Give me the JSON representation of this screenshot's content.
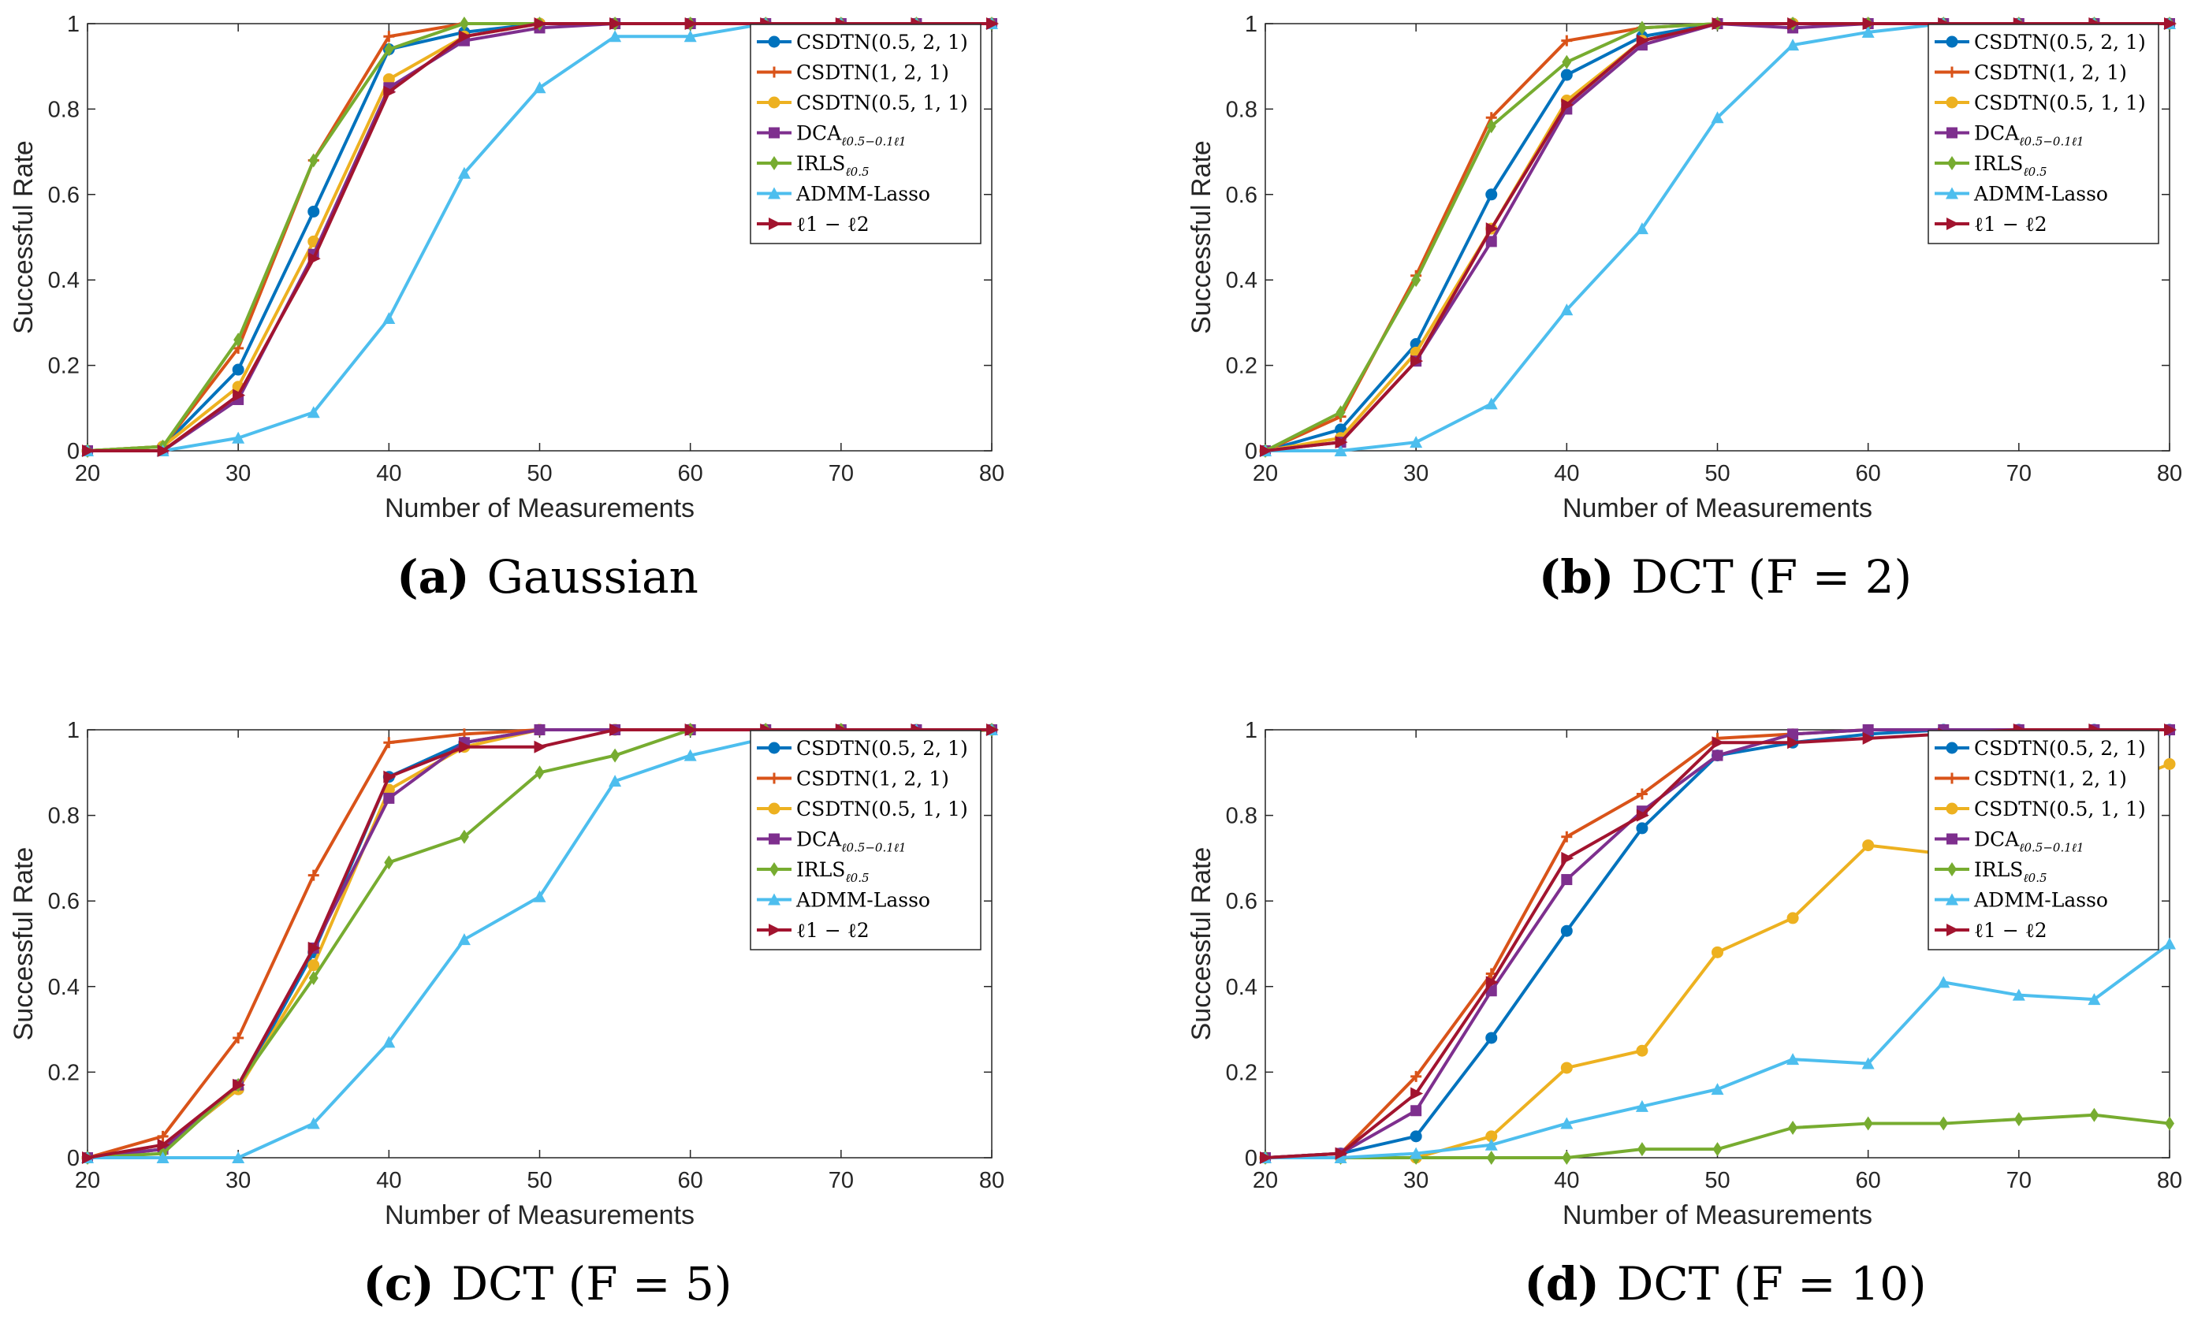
{
  "chart_data": [
    {
      "type": "line",
      "panel": "(a)",
      "caption": "Gaussian",
      "xlabel": "Number of Measurements",
      "ylabel": "Successful Rate",
      "xlim": [
        20,
        80
      ],
      "ylim": [
        0,
        1
      ],
      "xticks": [
        20,
        30,
        40,
        50,
        60,
        70,
        80
      ],
      "yticks": [
        0,
        0.2,
        0.4,
        0.6,
        0.8,
        1
      ],
      "ytick_labels": [
        "0",
        "0.2",
        "0.4",
        "0.6",
        "0.8",
        "1"
      ],
      "legend_position": "top-right",
      "x": [
        20,
        25,
        30,
        35,
        40,
        45,
        50,
        55,
        60,
        65,
        70,
        75,
        80
      ],
      "series": [
        {
          "name": "CSDTN(0.5, 2, 1)",
          "sub": "",
          "values": [
            0,
            0.01,
            0.19,
            0.56,
            0.94,
            0.98,
            1,
            1,
            1,
            1,
            1,
            1,
            1
          ]
        },
        {
          "name": "CSDTN(1, 2, 1)",
          "sub": "",
          "values": [
            0,
            0.01,
            0.24,
            0.68,
            0.97,
            1,
            1,
            1,
            1,
            1,
            1,
            1,
            1
          ]
        },
        {
          "name": "CSDTN(0.5, 1, 1)",
          "sub": "",
          "values": [
            0,
            0.01,
            0.15,
            0.49,
            0.87,
            0.97,
            1,
            1,
            1,
            1,
            1,
            1,
            1
          ]
        },
        {
          "name": "DCA",
          "sub": "ℓ0.5−0.1ℓ1",
          "values": [
            0,
            0,
            0.12,
            0.46,
            0.85,
            0.96,
            0.99,
            1,
            1,
            1,
            1,
            1,
            1
          ]
        },
        {
          "name": "IRLS",
          "sub": "ℓ0.5",
          "values": [
            0,
            0.01,
            0.26,
            0.68,
            0.94,
            1,
            1,
            1,
            1,
            1,
            1,
            1,
            1
          ]
        },
        {
          "name": "ADMM-Lasso",
          "sub": "",
          "values": [
            0,
            0,
            0.03,
            0.09,
            0.31,
            0.65,
            0.85,
            0.97,
            0.97,
            1,
            1,
            1,
            1
          ]
        },
        {
          "name": "ℓ1 − ℓ2",
          "sub": "",
          "values": [
            0,
            0,
            0.13,
            0.45,
            0.84,
            0.97,
            1,
            1,
            1,
            1,
            1,
            1,
            1
          ]
        }
      ]
    },
    {
      "type": "line",
      "panel": "(b)",
      "caption": "DCT (F = 2)",
      "xlabel": "Number of Measurements",
      "ylabel": "Successful Rate",
      "xlim": [
        20,
        80
      ],
      "ylim": [
        0,
        1
      ],
      "xticks": [
        20,
        30,
        40,
        50,
        60,
        70,
        80
      ],
      "yticks": [
        0,
        0.2,
        0.4,
        0.6,
        0.8,
        1
      ],
      "ytick_labels": [
        "0",
        "0.2",
        "0.4",
        "0.6",
        "0.8",
        "1"
      ],
      "legend_position": "top-right",
      "x": [
        20,
        25,
        30,
        35,
        40,
        45,
        50,
        55,
        60,
        65,
        70,
        75,
        80
      ],
      "series": [
        {
          "name": "CSDTN(0.5, 2, 1)",
          "sub": "",
          "values": [
            0,
            0.05,
            0.25,
            0.6,
            0.88,
            0.97,
            1,
            1,
            1,
            1,
            1,
            1,
            1
          ]
        },
        {
          "name": "CSDTN(1, 2, 1)",
          "sub": "",
          "values": [
            0,
            0.08,
            0.41,
            0.78,
            0.96,
            0.99,
            1,
            1,
            1,
            1,
            1,
            1,
            1
          ]
        },
        {
          "name": "CSDTN(0.5, 1, 1)",
          "sub": "",
          "values": [
            0,
            0.03,
            0.23,
            0.52,
            0.82,
            0.96,
            1,
            1,
            1,
            1,
            1,
            1,
            1
          ]
        },
        {
          "name": "DCA",
          "sub": "ℓ0.5−0.1ℓ1",
          "values": [
            0,
            0.02,
            0.21,
            0.49,
            0.8,
            0.95,
            1,
            0.99,
            1,
            1,
            1,
            1,
            1
          ]
        },
        {
          "name": "IRLS",
          "sub": "ℓ0.5",
          "values": [
            0,
            0.09,
            0.4,
            0.76,
            0.91,
            0.99,
            1,
            1,
            1,
            1,
            1,
            1,
            1
          ]
        },
        {
          "name": "ADMM-Lasso",
          "sub": "",
          "values": [
            0,
            0,
            0.02,
            0.11,
            0.33,
            0.52,
            0.78,
            0.95,
            0.98,
            1,
            1,
            1,
            1
          ]
        },
        {
          "name": "ℓ1 − ℓ2",
          "sub": "",
          "values": [
            0,
            0.02,
            0.21,
            0.52,
            0.81,
            0.96,
            1,
            1,
            1,
            1,
            1,
            1,
            1
          ]
        }
      ]
    },
    {
      "type": "line",
      "panel": "(c)",
      "caption": "DCT (F = 5)",
      "xlabel": "Number of Measurements",
      "ylabel": "Successful Rate",
      "xlim": [
        20,
        80
      ],
      "ylim": [
        0,
        1
      ],
      "xticks": [
        20,
        30,
        40,
        50,
        60,
        70,
        80
      ],
      "yticks": [
        0,
        0.2,
        0.4,
        0.6,
        0.8,
        1
      ],
      "ytick_labels": [
        "0",
        "0.2",
        "0.4",
        "0.6",
        "0.8",
        "1"
      ],
      "legend_position": "top-right",
      "x": [
        20,
        25,
        30,
        35,
        40,
        45,
        50,
        55,
        60,
        65,
        70,
        75,
        80
      ],
      "series": [
        {
          "name": "CSDTN(0.5, 2, 1)",
          "sub": "",
          "values": [
            0,
            0.02,
            0.16,
            0.48,
            0.89,
            0.97,
            1,
            1,
            1,
            1,
            1,
            1,
            1
          ]
        },
        {
          "name": "CSDTN(1, 2, 1)",
          "sub": "",
          "values": [
            0,
            0.05,
            0.28,
            0.66,
            0.97,
            0.99,
            1,
            1,
            1,
            1,
            1,
            1,
            1
          ]
        },
        {
          "name": "CSDTN(0.5, 1, 1)",
          "sub": "",
          "values": [
            0,
            0.02,
            0.16,
            0.45,
            0.86,
            0.96,
            1,
            1,
            1,
            1,
            1,
            1,
            1
          ]
        },
        {
          "name": "DCA",
          "sub": "ℓ0.5−0.1ℓ1",
          "values": [
            0,
            0.02,
            0.17,
            0.49,
            0.84,
            0.97,
            1,
            1,
            1,
            1,
            1,
            1,
            1
          ]
        },
        {
          "name": "IRLS",
          "sub": "ℓ0.5",
          "values": [
            0,
            0.01,
            0.17,
            0.42,
            0.69,
            0.75,
            0.9,
            0.94,
            1,
            1,
            1,
            0.99,
            1
          ]
        },
        {
          "name": "ADMM-Lasso",
          "sub": "",
          "values": [
            0,
            0,
            0,
            0.08,
            0.27,
            0.51,
            0.61,
            0.88,
            0.94,
            0.98,
            0.99,
            1,
            1
          ]
        },
        {
          "name": "ℓ1 − ℓ2",
          "sub": "",
          "values": [
            0,
            0.03,
            0.17,
            0.49,
            0.89,
            0.96,
            0.96,
            1,
            1,
            1,
            1,
            1,
            1
          ]
        }
      ]
    },
    {
      "type": "line",
      "panel": "(d)",
      "caption": "DCT (F = 10)",
      "xlabel": "Number of Measurements",
      "ylabel": "Successful Rate",
      "xlim": [
        20,
        80
      ],
      "ylim": [
        0,
        1
      ],
      "xticks": [
        20,
        30,
        40,
        50,
        60,
        70,
        80
      ],
      "yticks": [
        0,
        0.2,
        0.4,
        0.6,
        0.8,
        1
      ],
      "ytick_labels": [
        "0",
        "0.2",
        "0.4",
        "0.6",
        "0.8",
        "1"
      ],
      "legend_position": "top-right",
      "x": [
        20,
        25,
        30,
        35,
        40,
        45,
        50,
        55,
        60,
        65,
        70,
        75,
        80
      ],
      "series": [
        {
          "name": "CSDTN(0.5, 2, 1)",
          "sub": "",
          "values": [
            0,
            0.01,
            0.05,
            0.28,
            0.53,
            0.77,
            0.94,
            0.97,
            0.99,
            1,
            1,
            1,
            1
          ]
        },
        {
          "name": "CSDTN(1, 2, 1)",
          "sub": "",
          "values": [
            0,
            0.01,
            0.19,
            0.43,
            0.75,
            0.85,
            0.98,
            0.99,
            1,
            1,
            1,
            1,
            1
          ]
        },
        {
          "name": "CSDTN(0.5, 1, 1)",
          "sub": "",
          "values": [
            0,
            0,
            0,
            0.05,
            0.21,
            0.25,
            0.48,
            0.56,
            0.73,
            0.71,
            0.78,
            0.85,
            0.92
          ]
        },
        {
          "name": "DCA",
          "sub": "ℓ0.5−0.1ℓ1",
          "values": [
            0,
            0.01,
            0.11,
            0.39,
            0.65,
            0.81,
            0.94,
            0.99,
            1,
            1,
            1,
            1,
            1
          ]
        },
        {
          "name": "IRLS",
          "sub": "ℓ0.5",
          "values": [
            0,
            0,
            0,
            0,
            0,
            0.02,
            0.02,
            0.07,
            0.08,
            0.08,
            0.09,
            0.1,
            0.08
          ]
        },
        {
          "name": "ADMM-Lasso",
          "sub": "",
          "values": [
            0,
            0,
            0.01,
            0.03,
            0.08,
            0.12,
            0.16,
            0.23,
            0.22,
            0.41,
            0.38,
            0.37,
            0.5
          ]
        },
        {
          "name": "ℓ1 − ℓ2",
          "sub": "",
          "values": [
            0,
            0.01,
            0.15,
            0.41,
            0.7,
            0.8,
            0.97,
            0.97,
            0.98,
            0.99,
            1,
            1,
            1
          ]
        }
      ]
    }
  ],
  "series_style": [
    {
      "color": "#0072BD",
      "marker": "circle"
    },
    {
      "color": "#D95319",
      "marker": "plus"
    },
    {
      "color": "#EDB120",
      "marker": "circle"
    },
    {
      "color": "#7E2F8E",
      "marker": "square"
    },
    {
      "color": "#77AC30",
      "marker": "diamond"
    },
    {
      "color": "#4DBEEE",
      "marker": "triangle-up"
    },
    {
      "color": "#A2142F",
      "marker": "triangle-right"
    }
  ]
}
